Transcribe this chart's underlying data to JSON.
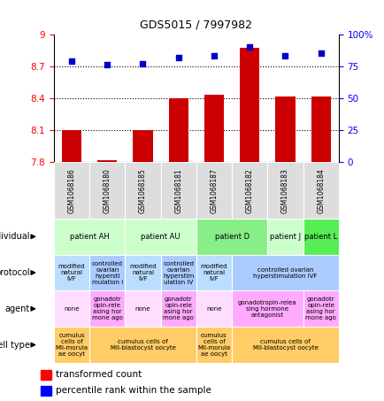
{
  "title": "GDS5015 / 7997982",
  "samples": [
    "GSM1068186",
    "GSM1068180",
    "GSM1068185",
    "GSM1068181",
    "GSM1068187",
    "GSM1068182",
    "GSM1068183",
    "GSM1068184"
  ],
  "red_values": [
    8.1,
    7.82,
    8.1,
    8.4,
    8.43,
    8.87,
    8.42,
    8.42
  ],
  "blue_values": [
    79,
    76,
    77,
    82,
    83,
    90,
    83,
    85
  ],
  "ylim_left": [
    7.8,
    9.0
  ],
  "ylim_right": [
    0,
    100
  ],
  "yticks_left": [
    7.8,
    8.1,
    8.4,
    8.7,
    9.0
  ],
  "ytick_labels_left": [
    "7.8",
    "8.1",
    "8.4",
    "8.7",
    "9"
  ],
  "yticks_right": [
    0,
    25,
    50,
    75,
    100
  ],
  "ytick_labels_right": [
    "0",
    "25",
    "50",
    "75",
    "100%"
  ],
  "hlines": [
    8.1,
    8.4,
    8.7
  ],
  "row_labels": [
    "individual",
    "protocol",
    "agent",
    "cell type"
  ],
  "ind_spans": [
    [
      "patient AH",
      0,
      2,
      "#ccffcc"
    ],
    [
      "patient AU",
      2,
      4,
      "#ccffcc"
    ],
    [
      "patient D",
      4,
      6,
      "#88ee88"
    ],
    [
      "patient J",
      6,
      7,
      "#ccffcc"
    ],
    [
      "patient L",
      7,
      8,
      "#55ee55"
    ]
  ],
  "proto_spans": [
    [
      "modified\nnatural\nIVF",
      0,
      1,
      "#bbddff"
    ],
    [
      "controlled\novarian\nhypersti\nmulation I",
      1,
      2,
      "#aaccff"
    ],
    [
      "modified\nnatural\nIVF",
      2,
      3,
      "#bbddff"
    ],
    [
      "controlled\novarian\nhyperstim\nulation IV",
      3,
      4,
      "#aaccff"
    ],
    [
      "modified\nnatural\nIVF",
      4,
      5,
      "#bbddff"
    ],
    [
      "controlled ovarian\nhyperstimulation IVF",
      5,
      8,
      "#aaccff"
    ]
  ],
  "agent_spans": [
    [
      "none",
      0,
      1,
      "#ffddff"
    ],
    [
      "gonadotr\nopin-rele\nasing hor\nmone ago",
      1,
      2,
      "#ffaaff"
    ],
    [
      "none",
      2,
      3,
      "#ffddff"
    ],
    [
      "gonadotr\nopin-rele\nasing hor\nmone ago",
      3,
      4,
      "#ffaaff"
    ],
    [
      "none",
      4,
      5,
      "#ffddff"
    ],
    [
      "gonadotropin-relea\nsing hormone\nantagonist",
      5,
      7,
      "#ffaaff"
    ],
    [
      "gonadotr\nopin-rele\nasing hor\nmone ago",
      7,
      8,
      "#ffaaff"
    ]
  ],
  "celltype_spans": [
    [
      "cumulus\ncells of\nMII-morula\nae oocyt",
      0,
      1,
      "#ffcc66"
    ],
    [
      "cumulus cells of\nMII-blastocyst oocyte",
      1,
      4,
      "#ffcc66"
    ],
    [
      "cumulus\ncells of\nMII-morula\nae oocyt",
      4,
      5,
      "#ffcc66"
    ],
    [
      "cumulus cells of\nMII-blastocyst oocyte",
      5,
      8,
      "#ffcc66"
    ]
  ],
  "legend_red": "transformed count",
  "legend_blue": "percentile rank within the sample",
  "bar_color": "#cc0000",
  "dot_color": "#0000cc",
  "sample_bg": "#dddddd"
}
